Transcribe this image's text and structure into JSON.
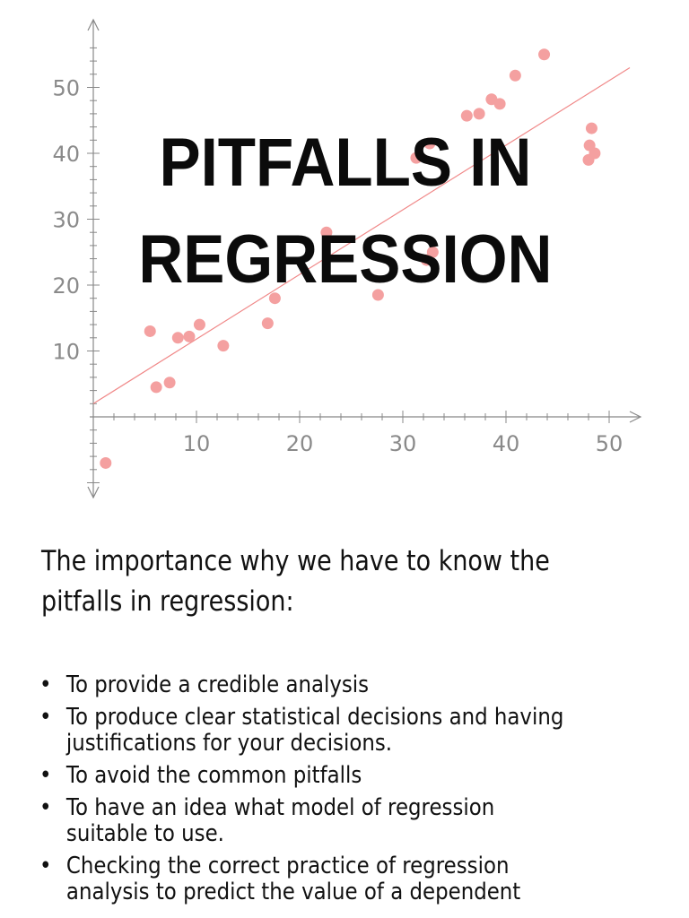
{
  "title": {
    "line1": "PITFALLS IN",
    "line2": "REGRESSION"
  },
  "intro": {
    "line1": "The importance why we have to know the",
    "line2": "pitfalls in regression:"
  },
  "bullets": [
    {
      "line1": "To provide a credible analysis"
    },
    {
      "line1": "To produce clear statistical decisions and having",
      "line2": "justifications for your decisions."
    },
    {
      "line1": "To avoid the common pitfalls"
    },
    {
      "line1": "To have an idea what model of regression",
      "line2": "suitable to use."
    },
    {
      "line1": " Checking the correct practice of regression",
      "line2": "analysis to predict the value of a dependent"
    }
  ],
  "bullet_symbol": "•",
  "chart_data": {
    "type": "scatter",
    "title": "",
    "xlabel": "",
    "ylabel": "",
    "xlim": [
      0,
      52
    ],
    "ylim": [
      -11,
      60
    ],
    "x_ticks": [
      10,
      20,
      30,
      40,
      50
    ],
    "y_ticks": [
      10,
      20,
      30,
      40,
      50
    ],
    "grid": false,
    "point_color": "#f4a0a0",
    "line_color": "#f08888",
    "axis_color": "#888888",
    "points": [
      {
        "x": 1.2,
        "y": -7
      },
      {
        "x": 5.5,
        "y": 13
      },
      {
        "x": 6.1,
        "y": 4.5
      },
      {
        "x": 7.4,
        "y": 5.2
      },
      {
        "x": 8.2,
        "y": 12
      },
      {
        "x": 9.3,
        "y": 12.2
      },
      {
        "x": 10.3,
        "y": 14
      },
      {
        "x": 12.6,
        "y": 10.8
      },
      {
        "x": 16.9,
        "y": 14.2
      },
      {
        "x": 17.6,
        "y": 18
      },
      {
        "x": 22.6,
        "y": 28
      },
      {
        "x": 27.6,
        "y": 18.5
      },
      {
        "x": 31.3,
        "y": 39.3
      },
      {
        "x": 32.6,
        "y": 41.5
      },
      {
        "x": 32.3,
        "y": 23.8
      },
      {
        "x": 32.9,
        "y": 25
      },
      {
        "x": 36.2,
        "y": 45.7
      },
      {
        "x": 37.4,
        "y": 46
      },
      {
        "x": 38.6,
        "y": 48.2
      },
      {
        "x": 39.4,
        "y": 47.5
      },
      {
        "x": 40.9,
        "y": 51.8
      },
      {
        "x": 43.7,
        "y": 55
      },
      {
        "x": 48.3,
        "y": 43.8
      },
      {
        "x": 48.6,
        "y": 40
      },
      {
        "x": 48.1,
        "y": 41.2
      },
      {
        "x": 48.0,
        "y": 39
      }
    ],
    "regression_line": {
      "x": [
        0,
        52
      ],
      "y": [
        2,
        53
      ]
    }
  }
}
